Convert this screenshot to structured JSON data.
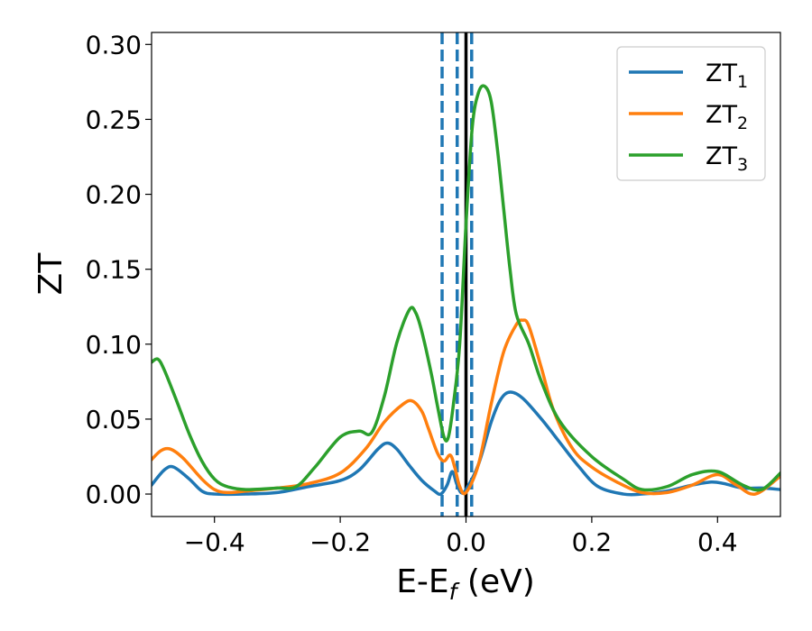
{
  "chart_data": {
    "type": "line",
    "title": "",
    "xlabel": "E-E_f (eV)",
    "ylabel": "ZT",
    "xlim": [
      -0.5,
      0.5
    ],
    "ylim": [
      -0.015,
      0.308
    ],
    "xticks": [
      -0.4,
      -0.2,
      0.0,
      0.2,
      0.4
    ],
    "xtick_labels": [
      "−0.4",
      "−0.2",
      "0.0",
      "0.2",
      "0.4"
    ],
    "yticks": [
      0.0,
      0.05,
      0.1,
      0.15,
      0.2,
      0.25,
      0.3
    ],
    "ytick_labels": [
      "0.00",
      "0.05",
      "0.10",
      "0.15",
      "0.20",
      "0.25",
      "0.30"
    ],
    "grid": false,
    "legend_position": "top-right",
    "vertical_lines": [
      {
        "x": -0.038,
        "style": "dashed",
        "color": "#1f77b4"
      },
      {
        "x": -0.014,
        "style": "dashed",
        "color": "#1f77b4"
      },
      {
        "x": 0.0,
        "style": "solid",
        "color": "#000000"
      },
      {
        "x": 0.009,
        "style": "dashed",
        "color": "#1f77b4"
      }
    ],
    "series": [
      {
        "name": "ZT",
        "subscript": "1",
        "color": "#1f77b4",
        "x": [
          -0.5,
          -0.48,
          -0.465,
          -0.44,
          -0.42,
          -0.4,
          -0.35,
          -0.3,
          -0.25,
          -0.2,
          -0.17,
          -0.14,
          -0.125,
          -0.11,
          -0.09,
          -0.07,
          -0.05,
          -0.04,
          -0.03,
          -0.022,
          -0.015,
          -0.008,
          0.0,
          0.02,
          0.04,
          0.055,
          0.07,
          0.09,
          0.12,
          0.15,
          0.18,
          0.21,
          0.25,
          0.28,
          0.32,
          0.36,
          0.39,
          0.41,
          0.44,
          0.47,
          0.5
        ],
        "y": [
          0.006,
          0.016,
          0.018,
          0.01,
          0.002,
          0.0,
          0.0,
          0.001,
          0.005,
          0.009,
          0.016,
          0.03,
          0.034,
          0.03,
          0.019,
          0.009,
          0.002,
          0.0,
          0.006,
          0.015,
          0.007,
          0.001,
          0.003,
          0.02,
          0.048,
          0.063,
          0.068,
          0.064,
          0.05,
          0.034,
          0.018,
          0.005,
          0.0,
          0.0,
          0.002,
          0.006,
          0.008,
          0.007,
          0.004,
          0.004,
          0.003
        ]
      },
      {
        "name": "ZT",
        "subscript": "2",
        "color": "#ff7f0e",
        "x": [
          -0.5,
          -0.485,
          -0.47,
          -0.45,
          -0.42,
          -0.4,
          -0.38,
          -0.35,
          -0.3,
          -0.25,
          -0.2,
          -0.16,
          -0.13,
          -0.1,
          -0.085,
          -0.07,
          -0.06,
          -0.045,
          -0.035,
          -0.025,
          -0.018,
          -0.01,
          0.0,
          0.02,
          0.04,
          0.06,
          0.08,
          0.09,
          0.1,
          0.12,
          0.14,
          0.17,
          0.2,
          0.24,
          0.28,
          0.32,
          0.36,
          0.4,
          0.43,
          0.46,
          0.5
        ],
        "y": [
          0.023,
          0.029,
          0.03,
          0.024,
          0.01,
          0.003,
          0.001,
          0.002,
          0.004,
          0.007,
          0.014,
          0.03,
          0.048,
          0.06,
          0.062,
          0.055,
          0.044,
          0.027,
          0.022,
          0.026,
          0.018,
          0.005,
          0.001,
          0.02,
          0.06,
          0.095,
          0.113,
          0.116,
          0.112,
          0.084,
          0.055,
          0.03,
          0.018,
          0.008,
          0.001,
          0.001,
          0.006,
          0.013,
          0.006,
          0.0,
          0.012
        ]
      },
      {
        "name": "ZT",
        "subscript": "3",
        "color": "#2ca02c",
        "x": [
          -0.5,
          -0.49,
          -0.48,
          -0.46,
          -0.44,
          -0.42,
          -0.4,
          -0.38,
          -0.35,
          -0.3,
          -0.27,
          -0.24,
          -0.2,
          -0.17,
          -0.15,
          -0.13,
          -0.11,
          -0.09,
          -0.08,
          -0.07,
          -0.055,
          -0.045,
          -0.035,
          -0.028,
          -0.02,
          -0.01,
          0.0,
          0.01,
          0.02,
          0.03,
          0.04,
          0.05,
          0.06,
          0.07,
          0.08,
          0.1,
          0.12,
          0.15,
          0.2,
          0.25,
          0.28,
          0.32,
          0.36,
          0.4,
          0.44,
          0.47,
          0.5
        ],
        "y": [
          0.088,
          0.09,
          0.083,
          0.062,
          0.04,
          0.022,
          0.01,
          0.005,
          0.003,
          0.004,
          0.005,
          0.018,
          0.038,
          0.042,
          0.041,
          0.065,
          0.101,
          0.123,
          0.121,
          0.108,
          0.08,
          0.058,
          0.038,
          0.038,
          0.06,
          0.1,
          0.18,
          0.245,
          0.268,
          0.272,
          0.262,
          0.23,
          0.19,
          0.15,
          0.12,
          0.1,
          0.075,
          0.048,
          0.025,
          0.01,
          0.003,
          0.005,
          0.013,
          0.015,
          0.006,
          0.003,
          0.014
        ]
      }
    ]
  }
}
